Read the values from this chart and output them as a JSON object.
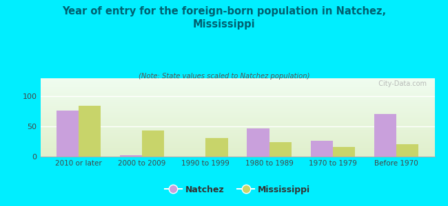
{
  "title": "Year of entry for the foreign-born population in Natchez,\nMississippi",
  "subtitle": "(Note: State values scaled to Natchez population)",
  "categories": [
    "2010 or later",
    "2000 to 2009",
    "1990 to 1999",
    "1980 to 1989",
    "1970 to 1979",
    "Before 1970"
  ],
  "natchez_values": [
    76,
    2,
    0,
    47,
    26,
    71
  ],
  "mississippi_values": [
    84,
    43,
    31,
    24,
    16,
    20
  ],
  "natchez_color": "#c9a0dc",
  "mississippi_color": "#c8d46a",
  "background_color": "#00eeff",
  "ylim": [
    0,
    130
  ],
  "yticks": [
    0,
    50,
    100
  ],
  "bar_width": 0.35,
  "watermark": "  City-Data.com",
  "legend_natchez": "Natchez",
  "legend_mississippi": "Mississippi",
  "title_color": "#006070",
  "subtitle_color": "#555555",
  "tick_color": "#444444"
}
